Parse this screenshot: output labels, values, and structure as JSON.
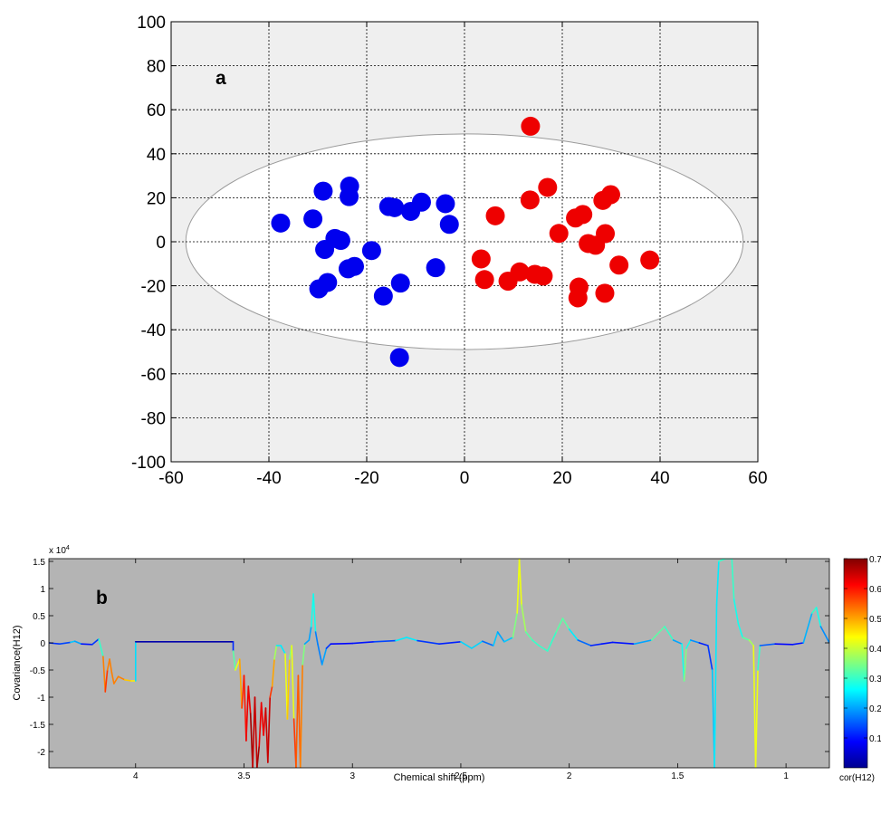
{
  "chart_data": [
    {
      "type": "scatter",
      "panel_label": "a",
      "title": "",
      "xlabel": "",
      "ylabel": "",
      "xlim": [
        -60,
        60
      ],
      "ylim": [
        -100,
        100
      ],
      "xticks": [
        "-60",
        "-40",
        "-20",
        "0",
        "20",
        "40",
        "60"
      ],
      "yticks": [
        "100",
        "80",
        "60",
        "40",
        "20",
        "0",
        "-20",
        "-40",
        "-60",
        "-80",
        "-100"
      ],
      "grid": true,
      "background_color": "#efefef",
      "ellipse": {
        "center": [
          0,
          0
        ],
        "semi_x": 57,
        "semi_y": 49,
        "fill": "#ffffff",
        "stroke": "#9a9a9a"
      },
      "series": [
        {
          "color": "#0000ee",
          "points": [
            [
              -37.6,
              8.5
            ],
            [
              -31,
              10.4
            ],
            [
              -28.9,
              23
            ],
            [
              -23.5,
              25.3
            ],
            [
              -23.6,
              20.5
            ],
            [
              -26.5,
              1.5
            ],
            [
              -25.3,
              0.6
            ],
            [
              -28.6,
              -3.5
            ],
            [
              -19,
              -4
            ],
            [
              -15.5,
              16
            ],
            [
              -14.3,
              15.5
            ],
            [
              -11,
              13.8
            ],
            [
              -8.8,
              18
            ],
            [
              -3.9,
              17.3
            ],
            [
              -3.1,
              7.9
            ],
            [
              -23.8,
              -12.3
            ],
            [
              -22.5,
              -11.2
            ],
            [
              -28,
              -18.5
            ],
            [
              -29.8,
              -21.4
            ],
            [
              -16.6,
              -24.7
            ],
            [
              -13.1,
              -18.8
            ],
            [
              -5.9,
              -11.8
            ],
            [
              -13.3,
              -52.6
            ]
          ]
        },
        {
          "color": "#ee0000",
          "points": [
            [
              13.5,
              52.5
            ],
            [
              6.3,
              11.8
            ],
            [
              13.4,
              19
            ],
            [
              17,
              24.7
            ],
            [
              19.3,
              3.8
            ],
            [
              22.7,
              10.8
            ],
            [
              24.2,
              12.4
            ],
            [
              25.3,
              -0.8
            ],
            [
              26.8,
              -1.6
            ],
            [
              28.3,
              18.8
            ],
            [
              29.9,
              21.4
            ],
            [
              28.8,
              3.7
            ],
            [
              31.6,
              -10.6
            ],
            [
              37.9,
              -8.3
            ],
            [
              3.4,
              -7.8
            ],
            [
              4.1,
              -17.2
            ],
            [
              8.9,
              -17.9
            ],
            [
              11.3,
              -13.7
            ],
            [
              14.4,
              -14.8
            ],
            [
              16.1,
              -15.6
            ],
            [
              23.4,
              -20.6
            ],
            [
              23.2,
              -25.5
            ],
            [
              28.7,
              -23.4
            ]
          ]
        }
      ]
    },
    {
      "type": "line",
      "panel_label": "b",
      "title": "",
      "xlabel": "Chemical shift (ppm)",
      "ylabel": "Covariance(H12)",
      "y_multiplier_label": "x 10",
      "y_multiplier_exponent": "4",
      "x_reversed": true,
      "xlim": [
        4.4,
        0.8
      ],
      "ylim": [
        -2.3,
        1.55
      ],
      "xticks": [
        "4",
        "3.5",
        "3",
        "2.5",
        "2",
        "1.5",
        "1"
      ],
      "yticks": [
        "1.5",
        "1",
        "0.5",
        "0",
        "-0.5",
        "-1",
        "-1.5",
        "-2"
      ],
      "background_color": "#b4b4b4",
      "colorbar": {
        "label": "cor(H12)",
        "range": [
          0,
          0.7
        ],
        "ticks": [
          "0.7",
          "0.6",
          "0.5",
          "0.4",
          "0.3",
          "0.2",
          "0.1"
        ]
      },
      "series": [
        {
          "note_color_encodes": "cor(H12)",
          "points": [
            [
              4.4,
              0.0,
              0.12
            ],
            [
              4.35,
              -0.02,
              0.12
            ],
            [
              4.3,
              0.01,
              0.15
            ],
            [
              4.28,
              0.03,
              0.3
            ],
            [
              4.25,
              -0.02,
              0.1
            ],
            [
              4.2,
              -0.03,
              0.1
            ],
            [
              4.17,
              0.07,
              0.15
            ],
            [
              4.15,
              -0.25,
              0.45
            ],
            [
              4.14,
              -0.9,
              0.6
            ],
            [
              4.13,
              -0.5,
              0.55
            ],
            [
              4.12,
              -0.3,
              0.5
            ],
            [
              4.11,
              -0.55,
              0.55
            ],
            [
              4.1,
              -0.75,
              0.5
            ],
            [
              4.08,
              -0.62,
              0.55
            ],
            [
              4.05,
              -0.68,
              0.5
            ],
            [
              4.02,
              -0.7,
              0.45
            ],
            [
              4.0,
              -0.7,
              0.45
            ],
            [
              4.0,
              0.02,
              0.03
            ],
            [
              3.55,
              0.02,
              0.03
            ],
            [
              3.55,
              -0.15,
              0.2
            ],
            [
              3.54,
              -0.5,
              0.45
            ],
            [
              3.52,
              -0.3,
              0.4
            ],
            [
              3.51,
              -1.2,
              0.6
            ],
            [
              3.5,
              -0.6,
              0.55
            ],
            [
              3.49,
              -1.8,
              0.65
            ],
            [
              3.48,
              -0.8,
              0.6
            ],
            [
              3.47,
              -1.3,
              0.65
            ],
            [
              3.46,
              -2.3,
              0.7
            ],
            [
              3.45,
              -1.0,
              0.6
            ],
            [
              3.44,
              -2.3,
              0.7
            ],
            [
              3.43,
              -1.9,
              0.65
            ],
            [
              3.42,
              -1.1,
              0.6
            ],
            [
              3.41,
              -1.7,
              0.65
            ],
            [
              3.4,
              -1.2,
              0.6
            ],
            [
              3.39,
              -2.2,
              0.7
            ],
            [
              3.38,
              -1.0,
              0.6
            ],
            [
              3.37,
              -0.8,
              0.55
            ],
            [
              3.36,
              -0.3,
              0.45
            ],
            [
              3.35,
              -0.05,
              0.3
            ],
            [
              3.33,
              -0.05,
              0.2
            ],
            [
              3.31,
              -0.2,
              0.3
            ],
            [
              3.3,
              -1.4,
              0.55
            ],
            [
              3.29,
              -0.3,
              0.4
            ],
            [
              3.28,
              -0.05,
              0.3
            ],
            [
              3.27,
              -1.4,
              0.55
            ],
            [
              3.26,
              -2.3,
              0.6
            ],
            [
              3.25,
              -0.6,
              0.5
            ],
            [
              3.24,
              -2.3,
              0.6
            ],
            [
              3.23,
              -0.4,
              0.45
            ],
            [
              3.22,
              -0.02,
              0.25
            ],
            [
              3.2,
              0.05,
              0.15
            ],
            [
              3.19,
              0.3,
              0.25
            ],
            [
              3.18,
              0.9,
              0.3
            ],
            [
              3.17,
              0.2,
              0.25
            ],
            [
              3.16,
              -0.02,
              0.1
            ],
            [
              3.14,
              -0.4,
              0.25
            ],
            [
              3.12,
              -0.1,
              0.15
            ],
            [
              3.1,
              -0.02,
              0.1
            ],
            [
              3.0,
              -0.01,
              0.08
            ],
            [
              2.9,
              0.02,
              0.12
            ],
            [
              2.8,
              0.04,
              0.15
            ],
            [
              2.75,
              0.1,
              0.35
            ],
            [
              2.7,
              0.04,
              0.15
            ],
            [
              2.6,
              -0.02,
              0.1
            ],
            [
              2.5,
              0.02,
              0.12
            ],
            [
              2.45,
              -0.1,
              0.35
            ],
            [
              2.4,
              0.03,
              0.12
            ],
            [
              2.35,
              -0.05,
              0.2
            ],
            [
              2.33,
              0.2,
              0.25
            ],
            [
              2.3,
              0.02,
              0.15
            ],
            [
              2.26,
              0.1,
              0.3
            ],
            [
              2.24,
              0.55,
              0.4
            ],
            [
              2.23,
              1.55,
              0.45
            ],
            [
              2.22,
              0.7,
              0.4
            ],
            [
              2.2,
              0.2,
              0.35
            ],
            [
              2.17,
              0.05,
              0.3
            ],
            [
              2.14,
              -0.05,
              0.3
            ],
            [
              2.1,
              -0.15,
              0.3
            ],
            [
              2.06,
              0.2,
              0.3
            ],
            [
              2.03,
              0.45,
              0.35
            ],
            [
              2.0,
              0.25,
              0.3
            ],
            [
              1.96,
              0.05,
              0.2
            ],
            [
              1.9,
              -0.05,
              0.12
            ],
            [
              1.85,
              -0.02,
              0.1
            ],
            [
              1.8,
              0.01,
              0.1
            ],
            [
              1.7,
              -0.02,
              0.1
            ],
            [
              1.62,
              0.05,
              0.3
            ],
            [
              1.56,
              0.3,
              0.35
            ],
            [
              1.52,
              0.05,
              0.25
            ],
            [
              1.48,
              -0.02,
              0.15
            ],
            [
              1.47,
              -0.7,
              0.4
            ],
            [
              1.46,
              -0.1,
              0.3
            ],
            [
              1.44,
              0.05,
              0.25
            ],
            [
              1.4,
              0.0,
              0.12
            ],
            [
              1.36,
              -0.05,
              0.1
            ],
            [
              1.34,
              -0.5,
              0.15
            ],
            [
              1.33,
              -2.3,
              0.3
            ],
            [
              1.32,
              0.7,
              0.2
            ],
            [
              1.31,
              1.5,
              0.3
            ],
            [
              1.28,
              1.55,
              0.3
            ],
            [
              1.25,
              1.55,
              0.3
            ],
            [
              1.24,
              0.8,
              0.3
            ],
            [
              1.22,
              0.35,
              0.25
            ],
            [
              1.2,
              0.1,
              0.3
            ],
            [
              1.17,
              0.05,
              0.35
            ],
            [
              1.15,
              -0.05,
              0.4
            ],
            [
              1.14,
              -2.3,
              0.45
            ],
            [
              1.13,
              -0.5,
              0.4
            ],
            [
              1.12,
              -0.05,
              0.2
            ],
            [
              1.05,
              -0.02,
              0.1
            ],
            [
              0.97,
              -0.03,
              0.08
            ],
            [
              0.92,
              0.0,
              0.12
            ],
            [
              0.88,
              0.55,
              0.3
            ],
            [
              0.86,
              0.65,
              0.3
            ],
            [
              0.84,
              0.3,
              0.25
            ],
            [
              0.8,
              0.0,
              0.12
            ]
          ]
        }
      ]
    }
  ]
}
